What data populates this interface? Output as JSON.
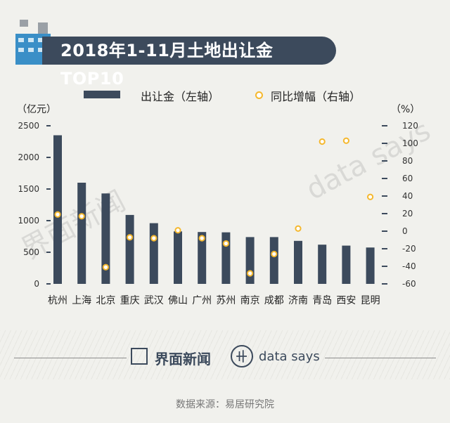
{
  "title": "2018年1-11月土地出让金TOP10",
  "legend": {
    "bar_label": "出让金（左轴）",
    "dot_label": "同比增幅（右轴）"
  },
  "left_unit": "（亿元）",
  "right_unit": "（%）",
  "watermarks": {
    "brand": "界面新闻",
    "datasays": "data says"
  },
  "footer": {
    "brand": "界面新闻",
    "datasays": "data says"
  },
  "source": "数据来源：易居研究院",
  "colors": {
    "bar": "#3c4a5c",
    "dot": "#f5b82e",
    "background": "#f1f1ed"
  },
  "chart_data": {
    "type": "bar",
    "categories": [
      "杭州",
      "上海",
      "北京",
      "重庆",
      "武汉",
      "佛山",
      "广州",
      "苏州",
      "南京",
      "成都",
      "济南",
      "青岛",
      "西安",
      "昆明"
    ],
    "series": [
      {
        "name": "出让金",
        "axis": "left",
        "type": "bar",
        "values": [
          2350,
          1600,
          1430,
          1090,
          960,
          830,
          820,
          815,
          740,
          740,
          680,
          620,
          605,
          575
        ]
      },
      {
        "name": "同比增幅",
        "axis": "right",
        "type": "scatter",
        "values": [
          19,
          17,
          -41,
          -7,
          -8,
          1,
          -8,
          -14,
          -48,
          -26,
          3,
          102,
          103,
          39
        ]
      }
    ],
    "left_axis": {
      "range": [
        0,
        2500
      ],
      "ticks": [
        0,
        500,
        1000,
        1500,
        2000,
        2500
      ]
    },
    "right_axis": {
      "range": [
        -60,
        120
      ],
      "ticks": [
        -60,
        -40,
        -20,
        0,
        20,
        40,
        60,
        80,
        100,
        120
      ]
    }
  }
}
